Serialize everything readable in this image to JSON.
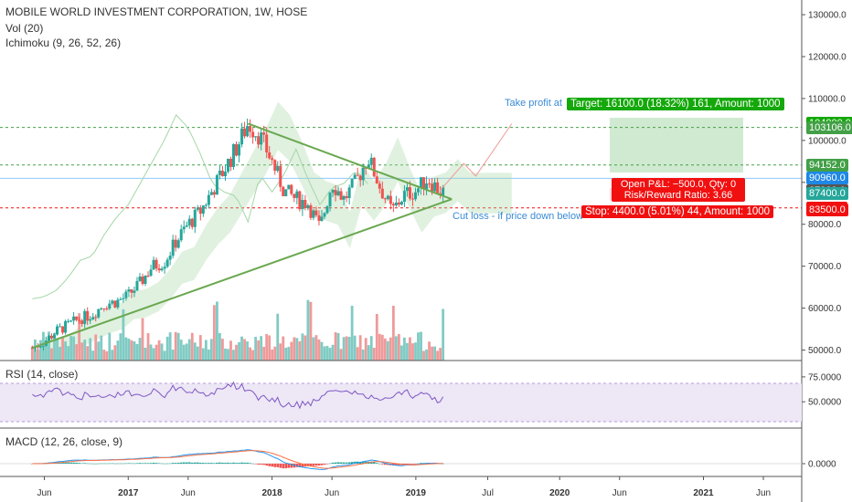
{
  "header": {
    "title": "MOBILE WORLD INVESTMENT CORPORATION, 1W, HOSE",
    "vol_label": "Vol (20)",
    "ichimoku_label": "Ichimoku (9, 26, 52, 26)",
    "rsi_label": "RSI (14, close)",
    "macd_label": "MACD (12, 26, close, 9)"
  },
  "colors": {
    "up": "#26a69a",
    "down": "#ef5350",
    "trendline": "#6aa84f",
    "rsi": "#7e57c2",
    "rsi_band": "#ede7f6",
    "macd": "#2196f3",
    "signal": "#ff7043",
    "target_zone": "#c8e6c9",
    "target": "#14a80a",
    "stop": "#f11010",
    "annotation": "#3a8bd6"
  },
  "price_axis": {
    "ticks": [
      "130000.0",
      "120000.0",
      "110000.0",
      "100000.0",
      "90000.0",
      "80000.0",
      "70000.0",
      "60000.0",
      "50000.0"
    ]
  },
  "price_tags": [
    {
      "value": 104000,
      "label": "104000.0",
      "color": "#14a80a"
    },
    {
      "value": 103106,
      "label": "103106.0",
      "color": "#43a047"
    },
    {
      "value": 94152,
      "label": "94152.0",
      "color": "#43a047"
    },
    {
      "value": 90960,
      "label": "90960.0",
      "color": "#1e88e5"
    },
    {
      "value": 87900,
      "label": "87900.0",
      "color": "#555555"
    },
    {
      "value": 87400,
      "label": "87400.0",
      "color": "#26a69a"
    },
    {
      "value": 83911,
      "label": "83911.0",
      "color": "#f11010"
    },
    {
      "value": 83500,
      "label": "83500.0",
      "color": "#f11010"
    }
  ],
  "rsi_axis": {
    "ticks": [
      "75.0000",
      "50.0000"
    ]
  },
  "macd_axis": {
    "ticks": [
      "0.0000"
    ]
  },
  "time_axis": {
    "labels": [
      {
        "t": "2016-06",
        "label": "Jun"
      },
      {
        "t": "2017-01",
        "label": "2017"
      },
      {
        "t": "2017-06",
        "label": "Jun"
      },
      {
        "t": "2018-01",
        "label": "2018"
      },
      {
        "t": "2018-06",
        "label": "Jun"
      },
      {
        "t": "2019-01",
        "label": "2019"
      },
      {
        "t": "2019-07",
        "label": "Jul"
      },
      {
        "t": "2020-01",
        "label": "2020"
      },
      {
        "t": "2020-06",
        "label": "Jun"
      },
      {
        "t": "2021-01",
        "label": "2021"
      },
      {
        "t": "2021-06",
        "label": "Jun"
      }
    ]
  },
  "annotations": {
    "take_profit": "Take profit at",
    "cut_loss": "Cut loss - if price down below"
  },
  "position": {
    "target": "Target: 16100.0 (18.32%) 161, Amount: 1000",
    "open_pnl": "Open P&L: −500.0, Qty: 0",
    "risk_reward": "Risk/Reward Ratio: 3.66",
    "stop": "Stop: 4400.0 (5.01%) 44, Amount: 1000"
  },
  "chart_data": {
    "type": "candlestick",
    "title": "MOBILE WORLD INVESTMENT CORPORATION, 1W, HOSE",
    "x_range": [
      "2016-04",
      "2021-08"
    ],
    "y_range": [
      47000,
      133000
    ],
    "levels": {
      "target_line": 103106,
      "resistance": 94152,
      "current": 90960,
      "entry": 87900,
      "stop_line": 83911
    },
    "price_series": [
      {
        "t": "2016-05",
        "close": 50500
      },
      {
        "t": "2016-06",
        "close": 52000
      },
      {
        "t": "2016-07",
        "close": 54500
      },
      {
        "t": "2016-08",
        "close": 56000
      },
      {
        "t": "2016-09",
        "close": 57500
      },
      {
        "t": "2016-10",
        "close": 58500
      },
      {
        "t": "2016-11",
        "close": 61000
      },
      {
        "t": "2016-12",
        "close": 61500
      },
      {
        "t": "2017-01",
        "close": 63000
      },
      {
        "t": "2017-02",
        "close": 66000
      },
      {
        "t": "2017-03",
        "close": 70000
      },
      {
        "t": "2017-04",
        "close": 71000
      },
      {
        "t": "2017-05",
        "close": 76000
      },
      {
        "t": "2017-06",
        "close": 80000
      },
      {
        "t": "2017-07",
        "close": 83000
      },
      {
        "t": "2017-08",
        "close": 88000
      },
      {
        "t": "2017-09",
        "close": 93000
      },
      {
        "t": "2017-10",
        "close": 98000
      },
      {
        "t": "2017-11",
        "close": 104000
      },
      {
        "t": "2017-12",
        "close": 101000
      },
      {
        "t": "2018-01",
        "close": 95000
      },
      {
        "t": "2018-02",
        "close": 88000
      },
      {
        "t": "2018-03",
        "close": 86000
      },
      {
        "t": "2018-04",
        "close": 85000
      },
      {
        "t": "2018-05",
        "close": 79000
      },
      {
        "t": "2018-06",
        "close": 90000
      },
      {
        "t": "2018-07",
        "close": 86000
      },
      {
        "t": "2018-08",
        "close": 90000
      },
      {
        "t": "2018-09",
        "close": 96000
      },
      {
        "t": "2018-10",
        "close": 89000
      },
      {
        "t": "2018-11",
        "close": 83000
      },
      {
        "t": "2018-12",
        "close": 87000
      },
      {
        "t": "2019-01",
        "close": 88000
      },
      {
        "t": "2019-02",
        "close": 91000
      },
      {
        "t": "2019-03",
        "close": 87900
      }
    ],
    "trendlines": [
      {
        "name": "upper",
        "from": {
          "t": "2017-11",
          "price": 104000
        },
        "to": {
          "t": "2019-04",
          "price": 86000
        }
      },
      {
        "name": "lower",
        "from": {
          "t": "2016-05",
          "price": 50500
        },
        "to": {
          "t": "2019-04",
          "price": 86000
        }
      }
    ],
    "rsi": {
      "range": [
        30,
        85
      ],
      "band": [
        30,
        70
      ],
      "last": 52
    },
    "macd": {
      "last": 0
    }
  }
}
